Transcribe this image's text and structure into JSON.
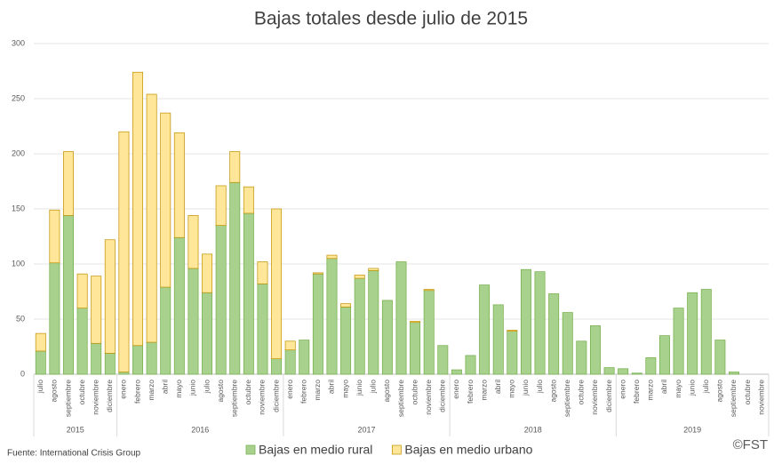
{
  "chart_data": {
    "type": "stacked_bar",
    "title": "Bajas totales desde julio de 2015",
    "groups": [
      {
        "label": "2015",
        "categories": [
          "julio",
          "agosto",
          "septiembre",
          "octubre",
          "noviembre",
          "diciembre"
        ]
      },
      {
        "label": "2016",
        "categories": [
          "enero",
          "febrero",
          "marzo",
          "abril",
          "mayo",
          "junio",
          "julio",
          "agosto",
          "septiembre",
          "octubre",
          "noviembre",
          "diciembre"
        ]
      },
      {
        "label": "2017",
        "categories": [
          "enero",
          "febrero",
          "marzo",
          "abril",
          "mayo",
          "junio",
          "julio",
          "agosto",
          "septiembre",
          "octubre",
          "noviembre",
          "diciembre"
        ]
      },
      {
        "label": "2018",
        "categories": [
          "enero",
          "febrero",
          "marzo",
          "abril",
          "mayo",
          "junio",
          "julio",
          "agosto",
          "septiembre",
          "octubre",
          "noviembre",
          "diciembre"
        ]
      },
      {
        "label": "2019",
        "categories": [
          "enero",
          "febrero",
          "marzo",
          "abril",
          "mayo",
          "junio",
          "julio",
          "agosto",
          "septiembre",
          "octubre",
          "noviembre"
        ]
      }
    ],
    "series": [
      {
        "name": "Bajas en medio rural",
        "color": "#a9d18e",
        "stroke": "#70ad47",
        "values": [
          21,
          101,
          144,
          60,
          28,
          19,
          2,
          26,
          29,
          79,
          124,
          96,
          74,
          135,
          174,
          146,
          82,
          14,
          22,
          31,
          91,
          105,
          61,
          87,
          94,
          67,
          102,
          47,
          76,
          26,
          4,
          17,
          81,
          63,
          39,
          95,
          93,
          73,
          56,
          30,
          44,
          6,
          5,
          1,
          15,
          35,
          60,
          74,
          77,
          31,
          2,
          0,
          0
        ]
      },
      {
        "name": "Bajas en medio urbano",
        "color": "#ffe699",
        "stroke": "#bf9000",
        "values": [
          16,
          48,
          58,
          31,
          61,
          103,
          218,
          248,
          225,
          158,
          95,
          48,
          35,
          36,
          28,
          24,
          20,
          136,
          8,
          0,
          1,
          3,
          3,
          3,
          2,
          0,
          0,
          1,
          1,
          0,
          0,
          0,
          0,
          0,
          1,
          0,
          0,
          0,
          0,
          0,
          0,
          0,
          0,
          0,
          0,
          0,
          0,
          0,
          0,
          0,
          0,
          0,
          0
        ]
      }
    ],
    "ylim": [
      0,
      300
    ],
    "yticks": [
      0,
      50,
      100,
      150,
      200,
      250,
      300
    ],
    "grid": true,
    "legend": "bottom",
    "source": "Fuente: International Crisis Group",
    "credit": "©FST"
  }
}
